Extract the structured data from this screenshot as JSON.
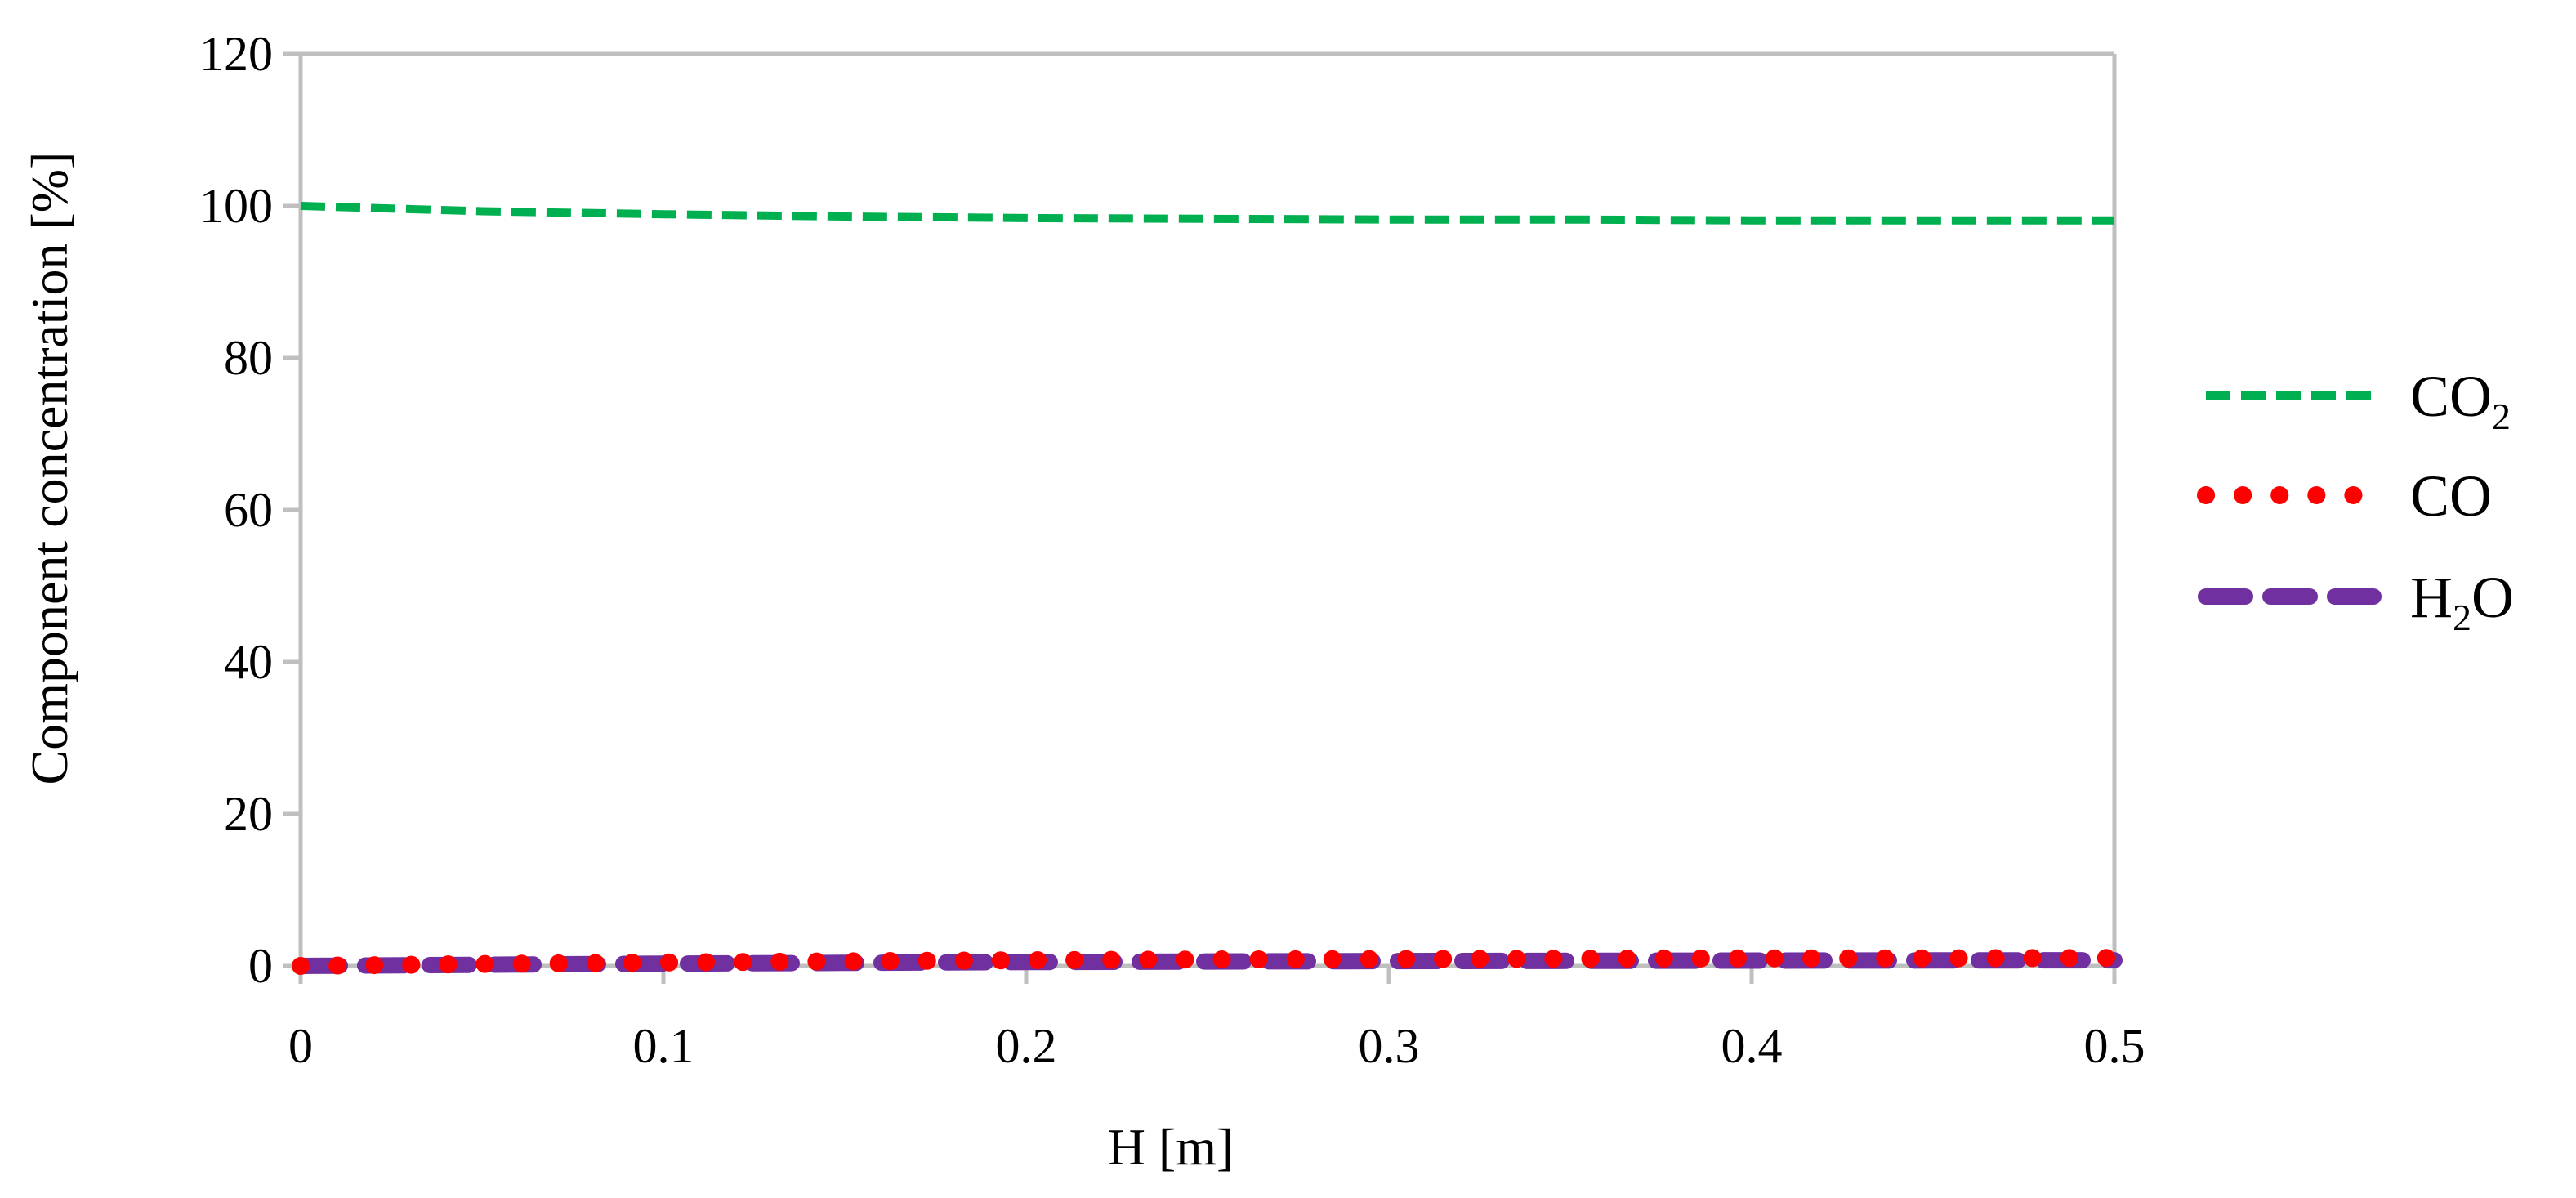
{
  "chart_data": {
    "type": "line",
    "title": "",
    "xlabel": "H [m]",
    "ylabel": "Component concentration [%]",
    "xlim": [
      0,
      0.5
    ],
    "ylim": [
      0,
      120
    ],
    "x_ticks": [
      "0",
      "0.1",
      "0.2",
      "0.3",
      "0.4",
      "0.5"
    ],
    "y_ticks": [
      "0",
      "20",
      "40",
      "60",
      "80",
      "100",
      "120"
    ],
    "grid": "frame",
    "legend_position": "right",
    "x": [
      0,
      0.05,
      0.1,
      0.15,
      0.2,
      0.25,
      0.3,
      0.35,
      0.4,
      0.45,
      0.5
    ],
    "series": [
      {
        "name": "CO2",
        "legend_main": "CO",
        "legend_sub": "2",
        "color": "#00b050",
        "style": "short-dash",
        "values": [
          100,
          99.3,
          98.9,
          98.6,
          98.4,
          98.3,
          98.2,
          98.2,
          98.1,
          98.1,
          98.1
        ]
      },
      {
        "name": "CO",
        "legend_main": "CO",
        "legend_sub": "",
        "color": "#ff0000",
        "style": "round-dot",
        "values": [
          0,
          0.25,
          0.45,
          0.6,
          0.75,
          0.85,
          0.9,
          0.95,
          1.0,
          1.0,
          1.05
        ]
      },
      {
        "name": "H2O",
        "legend_main": "H",
        "legend_sub": "2",
        "legend_tail": "O",
        "color": "#7030a0",
        "style": "long-dash",
        "values": [
          0,
          0.15,
          0.3,
          0.4,
          0.5,
          0.58,
          0.63,
          0.67,
          0.7,
          0.72,
          0.74
        ]
      }
    ]
  }
}
